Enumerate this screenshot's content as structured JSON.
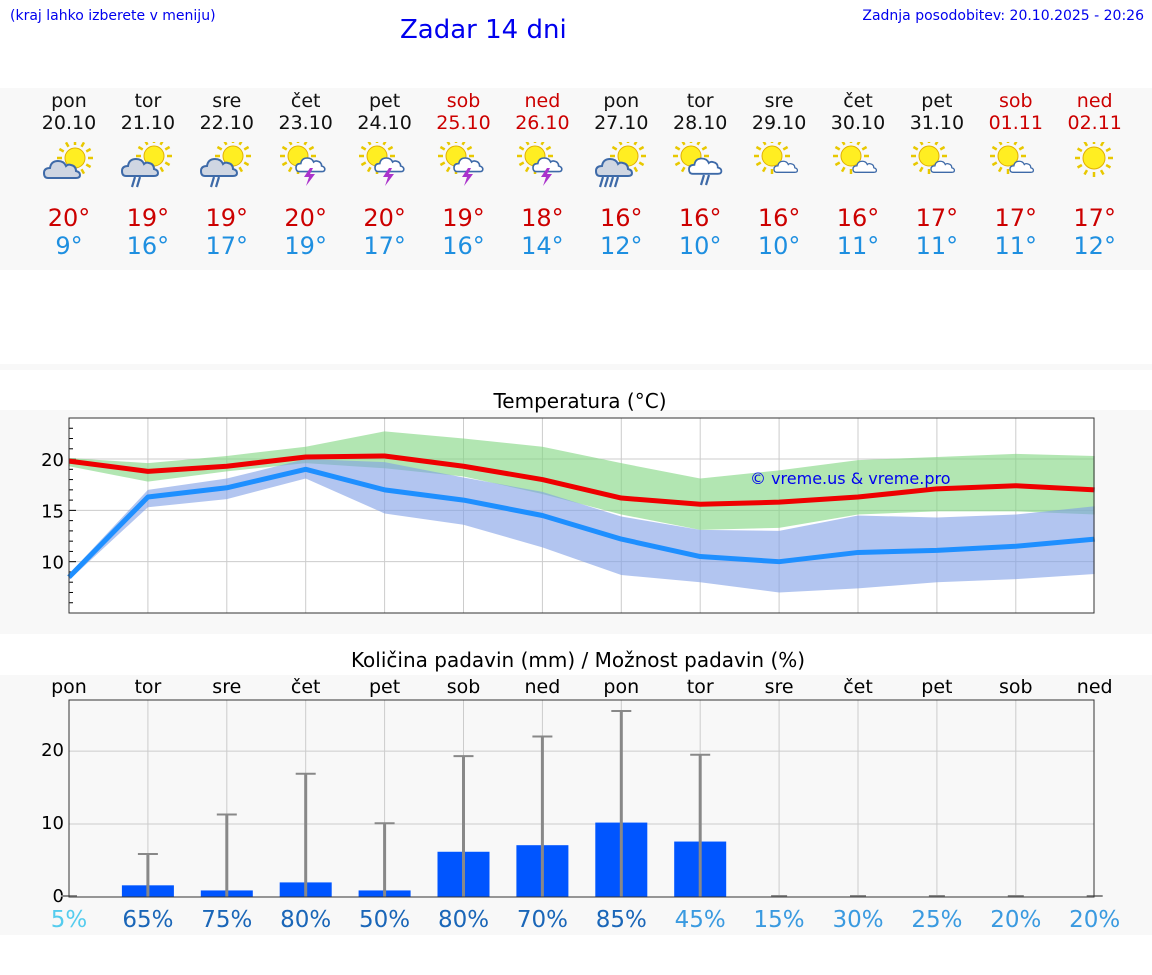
{
  "header": {
    "left": "(kraj lahko izberete v meniju)",
    "title": "Zadar 14 dni",
    "right": "Zadnja posodobitev: 20.10.2025 - 20:26"
  },
  "colors": {
    "max": "#ee0000",
    "min": "#1e8fff",
    "accent": "#0000ee",
    "bar": "#0055ff",
    "whisker": "#888888"
  },
  "days": [
    {
      "name": "pon",
      "date": "20.10",
      "max": "20°",
      "min": "9°",
      "icon": "partly-cloudy-sun-icon",
      "weekend": false
    },
    {
      "name": "tor",
      "date": "21.10",
      "max": "19°",
      "min": "16°",
      "icon": "sun-cloud-rain-icon",
      "weekend": false
    },
    {
      "name": "sre",
      "date": "22.10",
      "max": "19°",
      "min": "17°",
      "icon": "sun-cloud-rain-icon",
      "weekend": false
    },
    {
      "name": "čet",
      "date": "23.10",
      "max": "20°",
      "min": "19°",
      "icon": "sun-cloud-thunder-icon",
      "weekend": false
    },
    {
      "name": "pet",
      "date": "24.10",
      "max": "20°",
      "min": "17°",
      "icon": "sun-cloud-thunder-icon",
      "weekend": false
    },
    {
      "name": "sob",
      "date": "25.10",
      "max": "19°",
      "min": "16°",
      "icon": "sun-cloud-thunder-icon",
      "weekend": true
    },
    {
      "name": "ned",
      "date": "26.10",
      "max": "18°",
      "min": "14°",
      "icon": "sun-cloud-thunder-icon",
      "weekend": true
    },
    {
      "name": "pon",
      "date": "27.10",
      "max": "16°",
      "min": "12°",
      "icon": "sun-cloud-heavy-rain-icon",
      "weekend": false
    },
    {
      "name": "tor",
      "date": "28.10",
      "max": "16°",
      "min": "10°",
      "icon": "sun-cloud-light-rain-icon",
      "weekend": false
    },
    {
      "name": "sre",
      "date": "29.10",
      "max": "16°",
      "min": "10°",
      "icon": "sun-small-cloud-icon",
      "weekend": false
    },
    {
      "name": "čet",
      "date": "30.10",
      "max": "16°",
      "min": "11°",
      "icon": "sun-small-cloud-icon",
      "weekend": false
    },
    {
      "name": "pet",
      "date": "31.10",
      "max": "17°",
      "min": "11°",
      "icon": "sun-small-cloud-icon",
      "weekend": false
    },
    {
      "name": "sob",
      "date": "01.11",
      "max": "17°",
      "min": "11°",
      "icon": "sun-small-cloud-icon",
      "weekend": true
    },
    {
      "name": "ned",
      "date": "02.11",
      "max": "17°",
      "min": "12°",
      "icon": "sun-icon",
      "weekend": true
    }
  ],
  "chart_data": [
    {
      "type": "line",
      "title": "Temperatura (°C)",
      "x": [
        "20.10",
        "21.10",
        "22.10",
        "23.10",
        "24.10",
        "25.10",
        "26.10",
        "27.10",
        "28.10",
        "29.10",
        "30.10",
        "31.10",
        "01.11",
        "02.11"
      ],
      "ylim": [
        5,
        24
      ],
      "yticks": [
        10,
        15,
        20
      ],
      "grid": true,
      "watermark": "© vreme.us & vreme.pro",
      "series": [
        {
          "role": "max",
          "color": "#ee0000",
          "values": [
            19.8,
            18.8,
            19.3,
            20.2,
            20.3,
            19.3,
            18.0,
            16.2,
            15.6,
            15.8,
            16.3,
            17.1,
            17.4,
            17.0
          ]
        },
        {
          "role": "min",
          "color": "#1e8fff",
          "values": [
            8.5,
            16.3,
            17.2,
            19.0,
            17.0,
            16.0,
            14.5,
            12.2,
            10.5,
            10.0,
            10.9,
            11.1,
            11.5,
            12.2
          ]
        }
      ],
      "bands": [
        {
          "role": "max-range",
          "color": "#7fd67f",
          "low": [
            19.3,
            17.8,
            18.8,
            19.6,
            19.1,
            18.3,
            16.6,
            14.6,
            13.1,
            13.3,
            14.6,
            14.9,
            14.9,
            14.6
          ],
          "high": [
            20.1,
            19.6,
            20.3,
            21.2,
            22.7,
            22.0,
            21.2,
            19.6,
            18.1,
            18.9,
            19.9,
            20.2,
            20.5,
            20.3
          ]
        },
        {
          "role": "min-range",
          "color": "#7f9fe6",
          "low": [
            8.2,
            15.3,
            16.1,
            18.1,
            14.7,
            13.6,
            11.4,
            8.7,
            8.0,
            7.0,
            7.4,
            8.0,
            8.3,
            8.8
          ],
          "high": [
            8.8,
            17.0,
            18.1,
            20.0,
            19.7,
            18.2,
            16.8,
            14.4,
            13.1,
            13.0,
            14.5,
            14.3,
            14.6,
            15.4
          ]
        }
      ]
    },
    {
      "type": "bar",
      "title": "Količina padavin (mm) / Možnost padavin (%)",
      "categories": [
        "pon",
        "tor",
        "sre",
        "čet",
        "pet",
        "sob",
        "ned",
        "pon",
        "tor",
        "sre",
        "čet",
        "pet",
        "sob",
        "ned"
      ],
      "values": [
        0,
        1.6,
        0.9,
        2.0,
        0.9,
        6.2,
        7.1,
        10.2,
        7.6,
        0,
        0,
        0,
        0,
        0
      ],
      "whisker_max": [
        0,
        5.9,
        11.3,
        16.9,
        10.1,
        19.3,
        22.0,
        25.5,
        19.5,
        0,
        0,
        0,
        0,
        0
      ],
      "ylim": [
        0,
        27
      ],
      "yticks": [
        0,
        10,
        20
      ],
      "grid": true,
      "probability": [
        "5%",
        "65%",
        "75%",
        "80%",
        "50%",
        "80%",
        "70%",
        "85%",
        "45%",
        "15%",
        "30%",
        "25%",
        "20%",
        "20%"
      ],
      "probability_colors": [
        "#55ccee",
        "#1a66b8",
        "#1a66b8",
        "#1a66b8",
        "#1a66b8",
        "#1a66b8",
        "#1a66b8",
        "#1a66b8",
        "#3a9ae0",
        "#3a9ae0",
        "#3a9ae0",
        "#3a9ae0",
        "#3a9ae0",
        "#3a9ae0"
      ]
    }
  ]
}
